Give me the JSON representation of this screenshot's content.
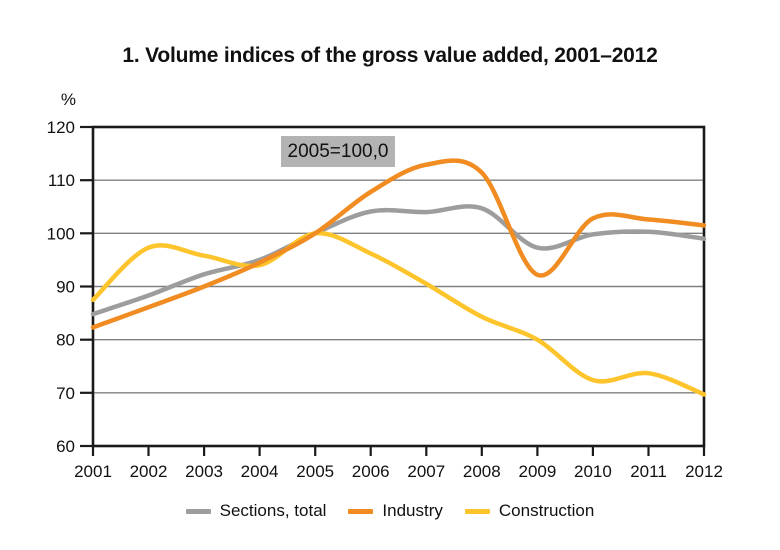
{
  "title": "1. Volume indices of the gross value added, 2001–2012",
  "annotation": {
    "text": "2005=100,0",
    "bg_color": "#b3b3b3"
  },
  "y_axis": {
    "unit": "%"
  },
  "legend": {
    "items": [
      {
        "label": "Sections, total",
        "color": "#9d9d9d"
      },
      {
        "label": "Industry",
        "color": "#f08c21"
      },
      {
        "label": "Construction",
        "color": "#fdc42c"
      }
    ]
  },
  "chart_data": {
    "type": "line",
    "title": "1. Volume indices of the gross value added, 2001–2012",
    "x": [
      2001,
      2002,
      2003,
      2004,
      2005,
      2006,
      2007,
      2008,
      2009,
      2010,
      2011,
      2012
    ],
    "series": [
      {
        "name": "Sections, total",
        "color": "#9d9d9d",
        "values": [
          84.8,
          88.3,
          92.3,
          95.0,
          100.0,
          104.1,
          104.0,
          104.7,
          97.3,
          99.8,
          100.3,
          99.0
        ]
      },
      {
        "name": "Industry",
        "color": "#f08c21",
        "values": [
          82.3,
          86.1,
          90.0,
          94.5,
          100.0,
          107.8,
          112.9,
          111.4,
          92.2,
          102.8,
          102.6,
          101.5
        ]
      },
      {
        "name": "Construction",
        "color": "#fdc42c",
        "values": [
          87.5,
          97.3,
          95.8,
          94.0,
          100.0,
          96.2,
          90.5,
          84.3,
          80.0,
          72.4,
          73.7,
          69.7
        ]
      }
    ],
    "ylim": [
      60,
      120
    ],
    "yticks": [
      60,
      70,
      80,
      90,
      100,
      110,
      120
    ],
    "grid": true,
    "gridline_color": "#808080",
    "axis_color": "#1a1a1a",
    "legend_position": "bottom",
    "draw_order": [
      0,
      2,
      1
    ],
    "base_note": "2005=100,0"
  }
}
